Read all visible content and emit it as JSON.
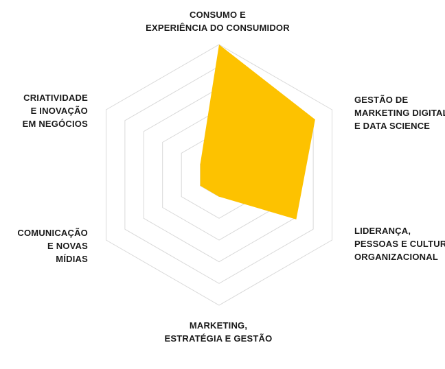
{
  "chart_data": {
    "type": "radar",
    "title": "",
    "axes": [
      {
        "label_lines": [
          "CONSUMO E",
          "EXPERIÊNCIA DO CONSUMIDOR"
        ]
      },
      {
        "label_lines": [
          "GESTÃO DE",
          "MARKETING DIGITAL",
          "E DATA SCIENCE"
        ]
      },
      {
        "label_lines": [
          "LIDERANÇA,",
          "PESSOAS E CULTURA",
          "ORGANIZACIONAL"
        ]
      },
      {
        "label_lines": [
          "MARKETING,",
          "ESTRATÉGIA E GESTÃO"
        ]
      },
      {
        "label_lines": [
          "COMUNICAÇÃO",
          "E NOVAS",
          "MÍDIAS"
        ]
      },
      {
        "label_lines": [
          "CRIATIVIDADE",
          "E INOVAÇÃO",
          "EM NEGÓCIOS"
        ]
      }
    ],
    "levels": 6,
    "range": [
      0,
      6
    ],
    "series": [
      {
        "values": [
          6.0,
          5.1,
          4.1,
          1.0,
          1.0,
          1.0
        ],
        "color": "#FDC200"
      }
    ],
    "grid": true,
    "grid_color": "#d9d9d9"
  }
}
